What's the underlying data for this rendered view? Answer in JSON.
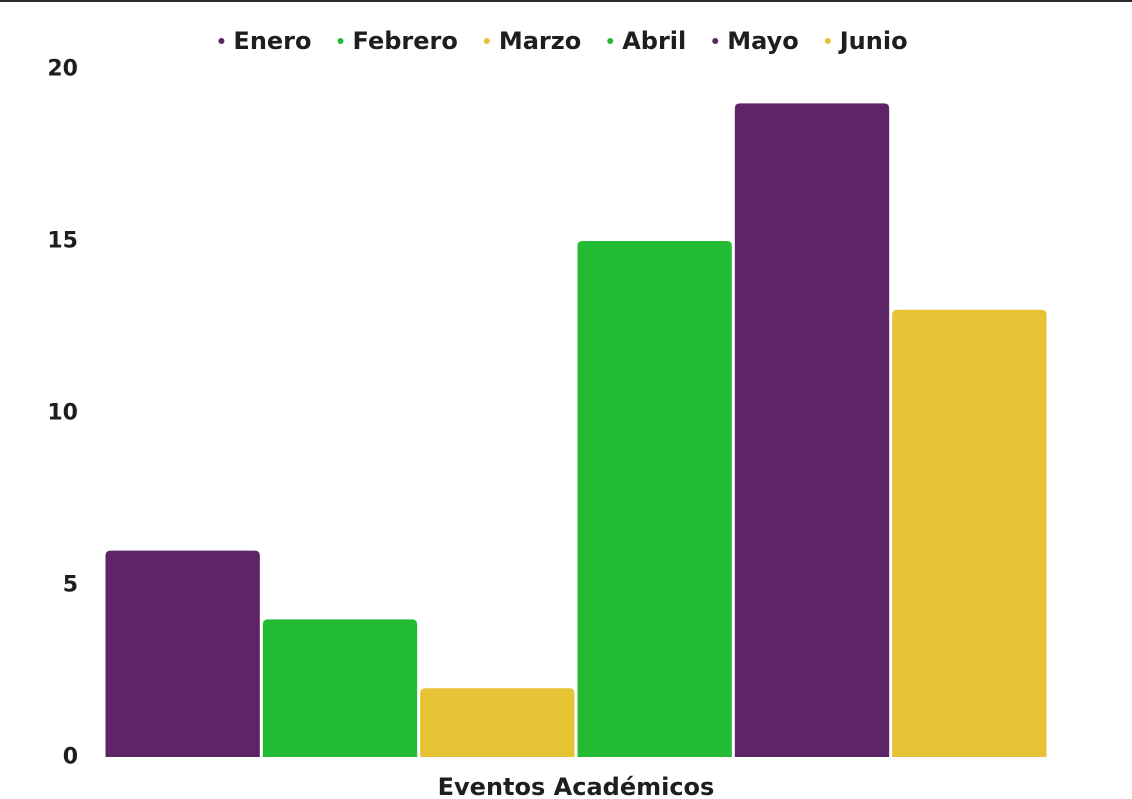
{
  "chart_data": {
    "type": "bar",
    "xlabel": "Eventos Académicos",
    "ylabel": "",
    "ylim": [
      0,
      20
    ],
    "yticks": [
      0,
      5,
      10,
      15,
      20
    ],
    "grid": false,
    "legend_position": "top",
    "categories": [
      "Eventos Académicos"
    ],
    "series": [
      {
        "name": "Enero",
        "values": [
          6
        ],
        "color": "#5e2566"
      },
      {
        "name": "Febrero",
        "values": [
          4
        ],
        "color": "#22bb33"
      },
      {
        "name": "Marzo",
        "values": [
          2
        ],
        "color": "#e6c235"
      },
      {
        "name": "Abril",
        "values": [
          15
        ],
        "color": "#22bb33"
      },
      {
        "name": "Mayo",
        "values": [
          19
        ],
        "color": "#5e2566"
      },
      {
        "name": "Junio",
        "values": [
          13
        ],
        "color": "#e6c235"
      }
    ]
  }
}
